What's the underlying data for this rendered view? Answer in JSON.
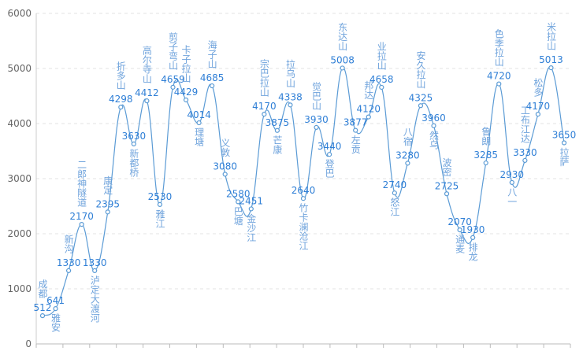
{
  "chart_data": {
    "type": "line",
    "categories": [
      "成都",
      "雅安",
      "新沟",
      "二郎神隧道",
      "泸定大渡河",
      "康定",
      "折多山",
      "新都桥",
      "高尔寺山",
      "雅江",
      "剪子弯山",
      "卡子拉山",
      "理塘",
      "海子山",
      "义敦",
      "巴塘",
      "金沙江",
      "宗巴拉山",
      "芒康",
      "拉乌山",
      "竹卡澜沧江",
      "觉巴山",
      "登巴",
      "东达山",
      "左贡",
      "邦达",
      "业拉山",
      "怒江",
      "八宿",
      "安久拉山",
      "然乌",
      "波密",
      "通麦",
      "排龙",
      "鲁朗",
      "色季拉山",
      "八一",
      "工布江达",
      "松多",
      "米拉山",
      "拉萨"
    ],
    "series": [
      {
        "color": "#5b9bd5",
        "values": [
          512,
          641,
          1330,
          2170,
          1330,
          2395,
          4298,
          3630,
          4412,
          2530,
          4659,
          4429,
          4014,
          4685,
          3080,
          2580,
          2451,
          4170,
          3875,
          4338,
          2640,
          3930,
          3440,
          5008,
          3877,
          4120,
          4658,
          2740,
          3280,
          4325,
          3960,
          2725,
          2070,
          1930,
          3285,
          4720,
          2930,
          3330,
          4170,
          5013,
          3650
        ]
      }
    ],
    "ylim": [
      0,
      6000
    ],
    "yticks": [
      0,
      1000,
      2000,
      3000,
      4000,
      5000,
      6000
    ],
    "grid": true
  }
}
